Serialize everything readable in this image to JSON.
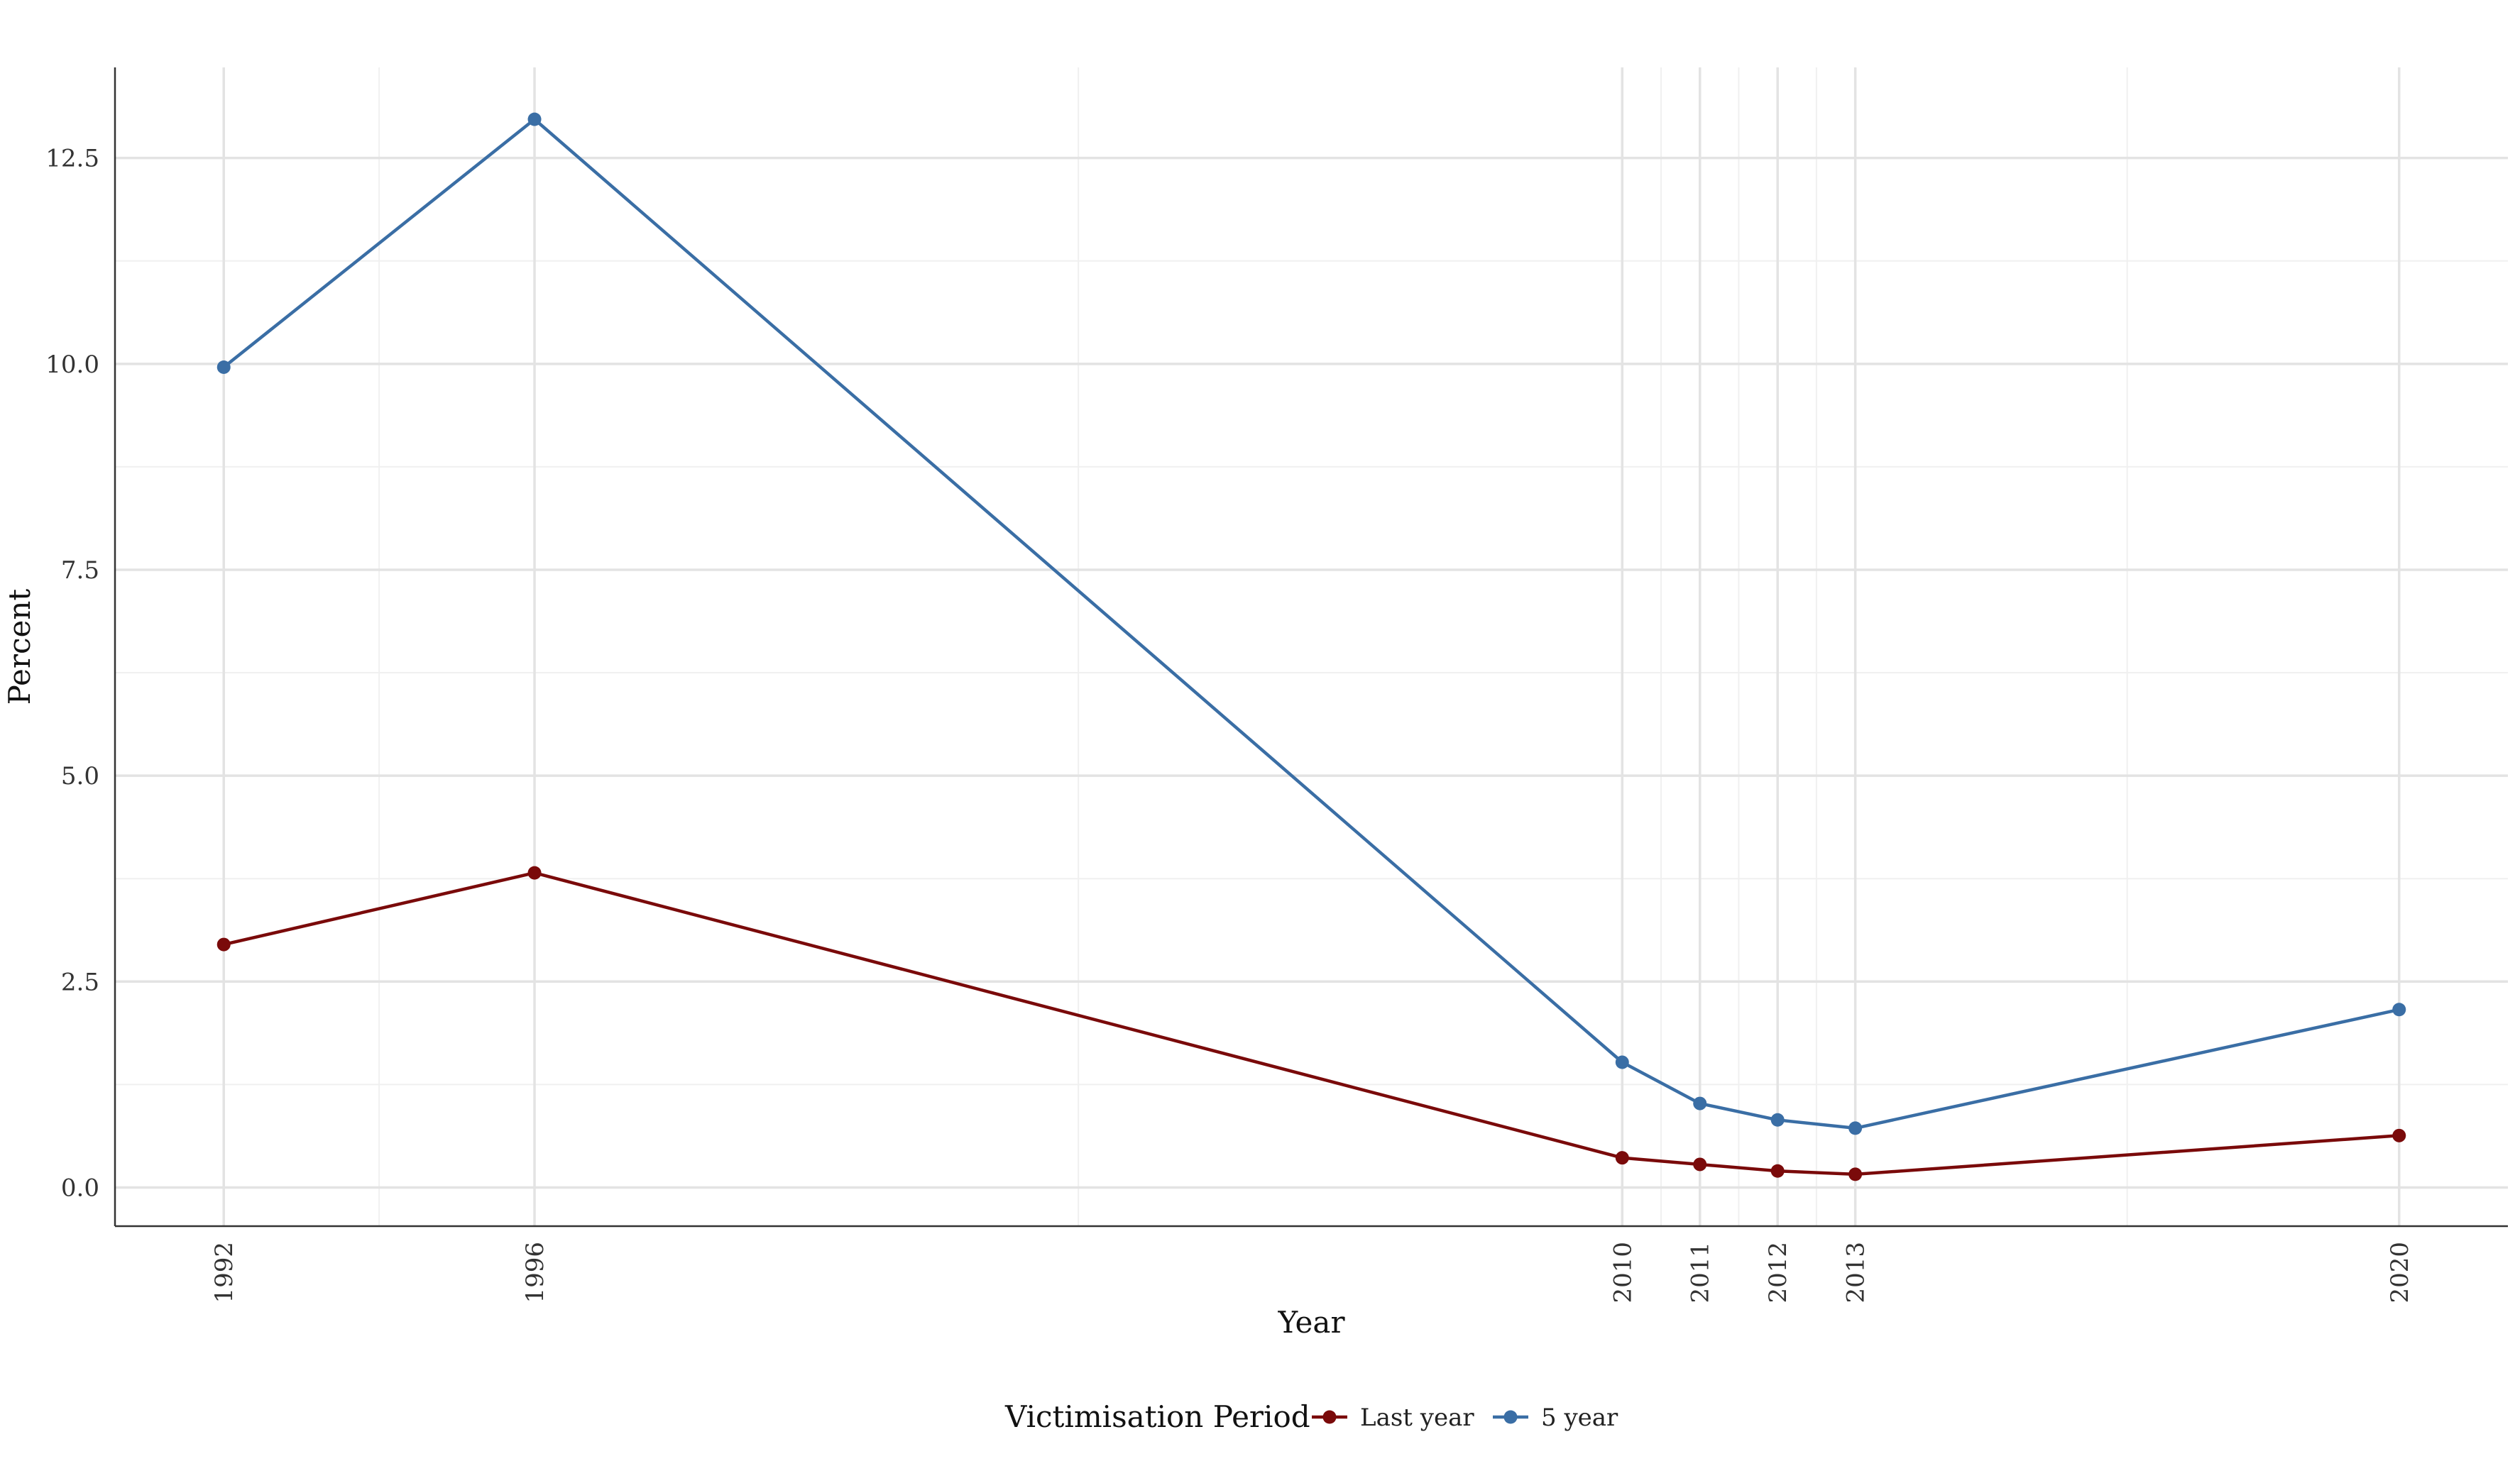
{
  "chart_data": {
    "type": "line",
    "title": "",
    "xlabel": "Year",
    "ylabel": "Percent",
    "x": [
      1992,
      1996,
      2010,
      2011,
      2012,
      2013,
      2020
    ],
    "xticks": [
      "1992",
      "1996",
      "2010",
      "2011",
      "2012",
      "2013",
      "2020"
    ],
    "xlim": [
      1990.6,
      2021.4
    ],
    "ylim": [
      -0.47,
      13.6
    ],
    "yticks": [
      "0.0",
      "2.5",
      "5.0",
      "7.5",
      "10.0",
      "12.5"
    ],
    "ytick_values": [
      0,
      2.5,
      5,
      7.5,
      10,
      12.5
    ],
    "grid": true,
    "legend": {
      "title": "Victimisation Period",
      "placement": "bottom"
    },
    "series": [
      {
        "name": "Last year",
        "color": "#7a0a0a",
        "values": [
          2.95,
          3.82,
          0.36,
          0.28,
          0.2,
          0.16,
          0.63
        ]
      },
      {
        "name": "5 year",
        "color": "#3a6ea5",
        "values": [
          9.96,
          12.97,
          1.52,
          1.02,
          0.82,
          0.72,
          2.16
        ]
      }
    ]
  }
}
